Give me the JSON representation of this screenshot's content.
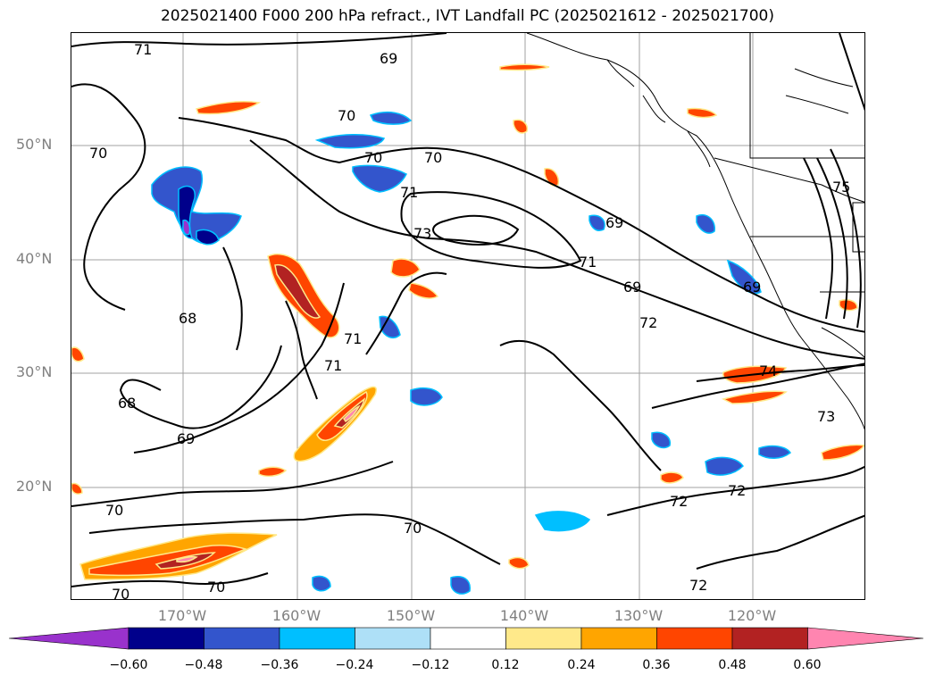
{
  "title": "2025021400 F000 200 hPa refract., IVT Landfall PC (2025021612 - 2025021700)",
  "lat_labels": [
    "50°N",
    "40°N",
    "30°N",
    "20°N"
  ],
  "lon_labels": [
    "170°W",
    "160°W",
    "150°W",
    "140°W",
    "130°W",
    "120°W"
  ],
  "colorbar": {
    "ticks": [
      "−0.60",
      "−0.48",
      "−0.36",
      "−0.24",
      "−0.12",
      "0.12",
      "0.24",
      "0.36",
      "0.48",
      "0.60"
    ],
    "colors": [
      "#9932cc",
      "#00008b",
      "#3355cc",
      "#00bfff",
      "#aee0f7",
      "#ffffff",
      "#ffe98a",
      "#ffa500",
      "#ff4500",
      "#b22222",
      "#ff85b0"
    ],
    "extend": "both"
  },
  "contour_labels": [
    "71",
    "69",
    "70",
    "70",
    "70",
    "70",
    "71",
    "73",
    "69",
    "69",
    "69",
    "68",
    "72",
    "71",
    "71",
    "68",
    "69",
    "74",
    "73",
    "75",
    "72",
    "72",
    "70",
    "70",
    "70",
    "70",
    "72",
    "71"
  ]
}
